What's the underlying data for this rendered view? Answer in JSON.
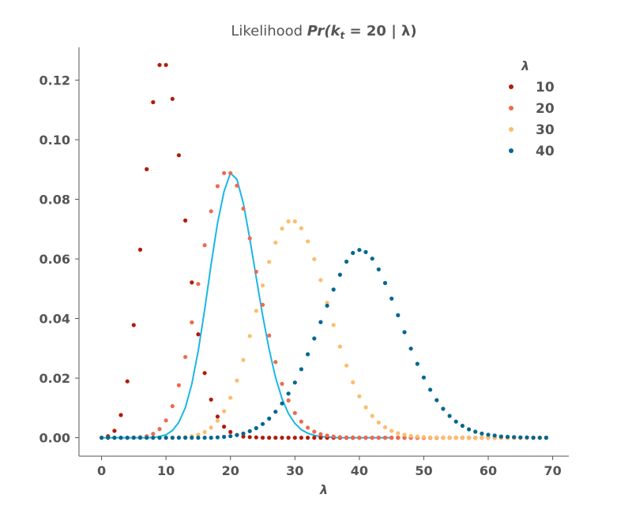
{
  "chart_data": {
    "type": "scatter",
    "title_prefix": "Likelihood ",
    "title_math": "Pr(k",
    "title_sub": "t",
    "title_rest": " = 20 | λ)",
    "xlabel": "λ",
    "ylabel": "",
    "xlim": [
      -3.5,
      72.5
    ],
    "ylim": [
      -0.0062,
      0.131
    ],
    "xticks": [
      0,
      10,
      20,
      30,
      40,
      50,
      60,
      70
    ],
    "xtick_labels": [
      "0",
      "10",
      "20",
      "30",
      "40",
      "50",
      "60",
      "70"
    ],
    "yticks": [
      0.0,
      0.02,
      0.04,
      0.06,
      0.08,
      0.1,
      0.12
    ],
    "ytick_labels": [
      "0.00",
      "0.02",
      "0.04",
      "0.06",
      "0.08",
      "0.10",
      "0.12"
    ],
    "grid": false,
    "legend": {
      "title": "λ",
      "placement": "top-right",
      "entries": [
        {
          "label": "10",
          "color": "#b01c0a"
        },
        {
          "label": "20",
          "color": "#ef6a4f"
        },
        {
          "label": "30",
          "color": "#fdbd6c"
        },
        {
          "label": "40",
          "color": "#00688f"
        }
      ]
    },
    "series": [
      {
        "name": "10",
        "color": "#b01c0a",
        "x": [
          0,
          1,
          2,
          3,
          4,
          5,
          6,
          7,
          8,
          9,
          10,
          11,
          12,
          13,
          14,
          15,
          16,
          17,
          18,
          19,
          20,
          21,
          22,
          23,
          24,
          25,
          26,
          27,
          28,
          29,
          30,
          31,
          32,
          33,
          34,
          35,
          36,
          37,
          38,
          39,
          40,
          41,
          42,
          43,
          44,
          45,
          46,
          47,
          48,
          49,
          50,
          51,
          52,
          53,
          54,
          55,
          56,
          57,
          58,
          59,
          60,
          61,
          62,
          63,
          64,
          65,
          66,
          67,
          68,
          69
        ],
        "y": [
          0.0,
          0.0005,
          0.0023,
          0.0076,
          0.0189,
          0.0378,
          0.0631,
          0.0901,
          0.1126,
          0.1251,
          0.1251,
          0.1137,
          0.0948,
          0.0729,
          0.0521,
          0.0347,
          0.0217,
          0.0128,
          0.0071,
          0.0037,
          0.0019,
          0.0009,
          0.0004,
          0.0002,
          0.0001,
          0.0,
          0.0,
          0.0,
          0.0,
          0.0,
          0.0,
          0.0,
          0.0,
          0.0,
          0.0,
          0.0,
          0.0,
          0.0,
          0.0,
          0.0,
          0.0,
          0.0,
          0.0,
          0.0,
          0.0,
          0.0,
          0.0,
          0.0,
          0.0,
          0.0,
          0.0,
          0.0,
          0.0,
          0.0,
          0.0,
          0.0,
          0.0,
          0.0,
          0.0,
          0.0,
          0.0,
          0.0,
          0.0,
          0.0,
          0.0,
          0.0,
          0.0,
          0.0,
          0.0,
          0.0
        ]
      },
      {
        "name": "20",
        "color": "#ef6a4f",
        "x": [
          0,
          1,
          2,
          3,
          4,
          5,
          6,
          7,
          8,
          9,
          10,
          11,
          12,
          13,
          14,
          15,
          16,
          17,
          18,
          19,
          20,
          21,
          22,
          23,
          24,
          25,
          26,
          27,
          28,
          29,
          30,
          31,
          32,
          33,
          34,
          35,
          36,
          37,
          38,
          39,
          40,
          41,
          42,
          43,
          44,
          45,
          46,
          47,
          48,
          49,
          50,
          51,
          52,
          53,
          54,
          55,
          56,
          57,
          58,
          59,
          60,
          61,
          62,
          63,
          64,
          65,
          66,
          67,
          68,
          69
        ],
        "y": [
          0.0,
          0.0,
          0.0,
          0.0,
          0.0,
          0.0001,
          0.0002,
          0.0005,
          0.0013,
          0.0029,
          0.0058,
          0.0106,
          0.0176,
          0.0271,
          0.0387,
          0.0516,
          0.0646,
          0.076,
          0.0844,
          0.0888,
          0.0888,
          0.0846,
          0.0769,
          0.0669,
          0.0557,
          0.0446,
          0.0343,
          0.0254,
          0.0181,
          0.0125,
          0.0083,
          0.0054,
          0.0034,
          0.002,
          0.0012,
          0.0007,
          0.0004,
          0.0002,
          0.0001,
          0.0001,
          0.0,
          0.0,
          0.0,
          0.0,
          0.0,
          0.0,
          0.0,
          0.0,
          0.0,
          0.0,
          0.0,
          0.0,
          0.0,
          0.0,
          0.0,
          0.0,
          0.0,
          0.0,
          0.0,
          0.0,
          0.0,
          0.0,
          0.0,
          0.0,
          0.0,
          0.0,
          0.0,
          0.0,
          0.0,
          0.0
        ]
      },
      {
        "name": "30",
        "color": "#fdbd6c",
        "x": [
          0,
          1,
          2,
          3,
          4,
          5,
          6,
          7,
          8,
          9,
          10,
          11,
          12,
          13,
          14,
          15,
          16,
          17,
          18,
          19,
          20,
          21,
          22,
          23,
          24,
          25,
          26,
          27,
          28,
          29,
          30,
          31,
          32,
          33,
          34,
          35,
          36,
          37,
          38,
          39,
          40,
          41,
          42,
          43,
          44,
          45,
          46,
          47,
          48,
          49,
          50,
          51,
          52,
          53,
          54,
          55,
          56,
          57,
          58,
          59,
          60,
          61,
          62,
          63,
          64,
          65,
          66,
          67,
          68,
          69
        ],
        "y": [
          0.0,
          0.0,
          0.0,
          0.0,
          0.0,
          0.0,
          0.0,
          0.0,
          0.0,
          0.0,
          0.0,
          0.0,
          0.0001,
          0.0002,
          0.0005,
          0.001,
          0.0019,
          0.0034,
          0.0057,
          0.0089,
          0.0134,
          0.0192,
          0.0261,
          0.0341,
          0.0426,
          0.0511,
          0.059,
          0.0655,
          0.0702,
          0.0726,
          0.0726,
          0.0703,
          0.0659,
          0.0599,
          0.0529,
          0.0453,
          0.0378,
          0.0306,
          0.0242,
          0.0186,
          0.0139,
          0.0102,
          0.0073,
          0.0051,
          0.0035,
          0.0023,
          0.0015,
          0.001,
          0.0006,
          0.0004,
          0.0002,
          0.0001,
          0.0001,
          0.0,
          0.0,
          0.0,
          0.0,
          0.0,
          0.0,
          0.0,
          0.0,
          0.0,
          0.0,
          0.0,
          0.0,
          0.0,
          0.0,
          0.0,
          0.0,
          0.0
        ]
      },
      {
        "name": "40",
        "color": "#00688f",
        "x": [
          0,
          1,
          2,
          3,
          4,
          5,
          6,
          7,
          8,
          9,
          10,
          11,
          12,
          13,
          14,
          15,
          16,
          17,
          18,
          19,
          20,
          21,
          22,
          23,
          24,
          25,
          26,
          27,
          28,
          29,
          30,
          31,
          32,
          33,
          34,
          35,
          36,
          37,
          38,
          39,
          40,
          41,
          42,
          43,
          44,
          45,
          46,
          47,
          48,
          49,
          50,
          51,
          52,
          53,
          54,
          55,
          56,
          57,
          58,
          59,
          60,
          61,
          62,
          63,
          64,
          65,
          66,
          67,
          68,
          69
        ],
        "y": [
          0.0,
          0.0,
          0.0,
          0.0,
          0.0,
          0.0,
          0.0,
          0.0,
          0.0,
          0.0,
          0.0,
          0.0,
          0.0,
          0.0,
          0.0,
          0.0,
          0.0,
          0.0,
          0.0001,
          0.0003,
          0.0005,
          0.0009,
          0.0014,
          0.0022,
          0.0032,
          0.0046,
          0.0064,
          0.0087,
          0.0115,
          0.0148,
          0.0185,
          0.023,
          0.028,
          0.0333,
          0.0388,
          0.0443,
          0.0497,
          0.0547,
          0.0591,
          0.062,
          0.063,
          0.0623,
          0.0601,
          0.0565,
          0.0519,
          0.0467,
          0.0411,
          0.0354,
          0.0299,
          0.0248,
          0.0202,
          0.0161,
          0.0126,
          0.0097,
          0.0073,
          0.0054,
          0.004,
          0.0028,
          0.002,
          0.0014,
          0.001,
          0.0007,
          0.0004,
          0.0003,
          0.0002,
          0.0001,
          0.0001,
          0.0,
          0.0,
          0.0
        ]
      },
      {
        "name": "",
        "type": "line",
        "color": "#1bb6e6",
        "x": [
          0,
          1,
          2,
          3,
          4,
          5,
          6,
          7,
          8,
          9,
          10,
          11,
          12,
          13,
          14,
          15,
          16,
          17,
          18,
          19,
          20,
          21,
          22,
          23,
          24,
          25,
          26,
          27,
          28,
          29,
          30,
          31,
          32,
          33,
          34,
          35,
          36,
          37,
          38,
          39,
          40,
          41,
          42,
          43,
          44,
          45
        ],
        "y": [
          0.0,
          0.0,
          0.0,
          0.0,
          0.0,
          0.0,
          0.0,
          0.0,
          0.0001,
          0.0004,
          0.001,
          0.0024,
          0.0052,
          0.0101,
          0.018,
          0.0291,
          0.043,
          0.0581,
          0.0721,
          0.0826,
          0.0888,
          0.0867,
          0.0787,
          0.0668,
          0.0538,
          0.041,
          0.0296,
          0.0202,
          0.0131,
          0.0081,
          0.0048,
          0.0027,
          0.0015,
          0.0008,
          0.0004,
          0.0002,
          0.0001,
          0.0,
          0.0,
          0.0,
          0.0,
          0.0,
          0.0,
          0.0,
          0.0,
          0.0
        ]
      }
    ]
  }
}
